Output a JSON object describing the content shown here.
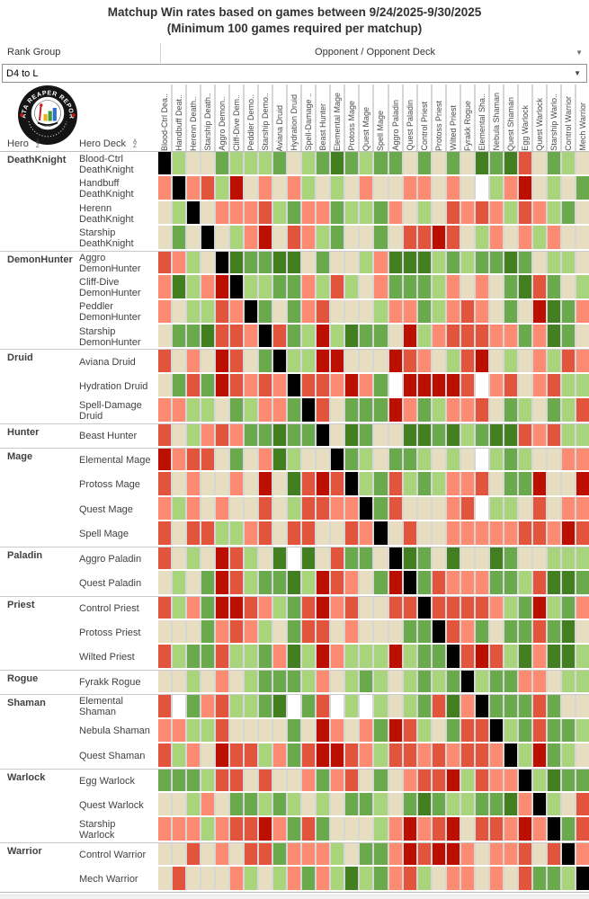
{
  "title": {
    "line1": "Matchup Win rates based on games between 9/24/2025-9/30/2025",
    "line2": "(Minimum 100 games required per matchup)"
  },
  "controls": {
    "rank_group_label": "Rank Group",
    "opponent_header": "Opponent / Opponent Deck",
    "rank_group_value": "D4 to L",
    "dropdown_arrow": "▼"
  },
  "table": {
    "hero_col_label": "Hero",
    "deck_col_label": "Hero Deck",
    "sort_icon_top": "A",
    "sort_icon_bottom": "Z",
    "logo": {
      "arc_text": "DATA REAPER REPORT"
    },
    "columns": [
      "Blood-Ctrl Dea..",
      "Handbuff Deat..",
      "Herenn Death..",
      "Starship Death..",
      "Aggro Demon..",
      "Cliff-Dive Dem..",
      "Peddler Demo..",
      "Starship Demo..",
      "Aviana Druid",
      "Hydration Druid",
      "Spell-Damage ..",
      "Beast Hunter",
      "Elemental Mage",
      "Protoss Mage",
      "Quest Mage",
      "Spell Mage",
      "Aggro Paladin",
      "Quest Paladin",
      "Control Priest",
      "Protoss Priest",
      "Wilted Priest",
      "Fyrakk Rogue",
      "Elemental Sha..",
      "Nebula Shaman",
      "Quest Shaman",
      "Egg Warlock",
      "Quest Warlock",
      "Starship Warlo..",
      "Control Warrior",
      "Mech Warrior"
    ],
    "groups": [
      {
        "hero": "DeathKnight",
        "decks": [
          "Blood-Ctrl DeathKnight",
          "Handbuff DeathKnight",
          "Herenn DeathKnight",
          "Starship DeathKnight"
        ]
      },
      {
        "hero": "DemonHunter",
        "decks": [
          "Aggro DemonHunter",
          "Cliff-Dive DemonHunter",
          "Peddler DemonHunter",
          "Starship DemonHunter"
        ]
      },
      {
        "hero": "Druid",
        "decks": [
          "Aviana Druid",
          "Hydration Druid",
          "Spell-Damage Druid"
        ]
      },
      {
        "hero": "Hunter",
        "decks": [
          "Beast Hunter"
        ]
      },
      {
        "hero": "Mage",
        "decks": [
          "Elemental Mage",
          "Protoss Mage",
          "Quest Mage",
          "Spell Mage"
        ]
      },
      {
        "hero": "Paladin",
        "decks": [
          "Aggro Paladin",
          "Quest Paladin"
        ]
      },
      {
        "hero": "Priest",
        "decks": [
          "Control Priest",
          "Protoss Priest",
          "Wilted Priest"
        ]
      },
      {
        "hero": "Rogue",
        "decks": [
          "Fyrakk Rogue"
        ]
      },
      {
        "hero": "Shaman",
        "decks": [
          "Elemental Shaman",
          "Nebula Shaman",
          "Quest Shaman"
        ]
      },
      {
        "hero": "Warlock",
        "decks": [
          "Egg Warlock",
          "Quest Warlock",
          "Starship Warlock"
        ]
      },
      {
        "hero": "Warrior",
        "decks": [
          "Control Warrior",
          "Mech Warrior"
        ]
      }
    ]
  },
  "chart_data": {
    "type": "heatmap",
    "title": "Matchup Win rates based on games between 9/24/2025-9/30/2025 (Minimum 100 games required per matchup)",
    "x_labels": [
      "Blood-Ctrl DeathKnight",
      "Handbuff DeathKnight",
      "Herenn DeathKnight",
      "Starship DeathKnight",
      "Aggro DemonHunter",
      "Cliff-Dive DemonHunter",
      "Peddler DemonHunter",
      "Starship DemonHunter",
      "Aviana Druid",
      "Hydration Druid",
      "Spell-Damage Druid",
      "Beast Hunter",
      "Elemental Mage",
      "Protoss Mage",
      "Quest Mage",
      "Spell Mage",
      "Aggro Paladin",
      "Quest Paladin",
      "Control Priest",
      "Protoss Priest",
      "Wilted Priest",
      "Fyrakk Rogue",
      "Elemental Shaman",
      "Nebula Shaman",
      "Quest Shaman",
      "Egg Warlock",
      "Quest Warlock",
      "Starship Warlock",
      "Control Warrior",
      "Mech Warrior"
    ],
    "y_labels": [
      "Blood-Ctrl DeathKnight",
      "Handbuff DeathKnight",
      "Herenn DeathKnight",
      "Starship DeathKnight",
      "Aggro DemonHunter",
      "Cliff-Dive DemonHunter",
      "Peddler DemonHunter",
      "Starship DemonHunter",
      "Aviana Druid",
      "Hydration Druid",
      "Spell-Damage Druid",
      "Beast Hunter",
      "Elemental Mage",
      "Protoss Mage",
      "Quest Mage",
      "Spell Mage",
      "Aggro Paladin",
      "Quest Paladin",
      "Control Priest",
      "Protoss Priest",
      "Wilted Priest",
      "Fyrakk Rogue",
      "Elemental Shaman",
      "Nebula Shaman",
      "Quest Shaman",
      "Egg Warlock",
      "Quest Warlock",
      "Starship Warlock",
      "Control Warrior",
      "Mech Warrior"
    ],
    "palette": {
      "K": "#000000",
      "W": "#ffffff",
      "A": "#417f21",
      "B": "#6aa94c",
      "C": "#a8d57b",
      "T": "#e7ddc1",
      "D": "#fc8b72",
      "E": "#e2543b",
      "F": "#bd0f00"
    },
    "palette_meaning": {
      "A": "heavily favored (win)",
      "B": "favored",
      "C": "slightly favored",
      "T": "close to even",
      "D": "slightly unfavored",
      "E": "unfavored",
      "F": "heavily unfavored (loss)",
      "K": "mirror matchup",
      "W": "insufficient data"
    },
    "matrix": [
      "K C T T B C C C B T C B A B C B B T B T B T A B A E T B C T",
      "D K D E C F T D T D C T C T D T T D D T D T W C D F T C T B",
      "T C K T D D D E C B D D B C C B D T C T E D E D C E D C B T",
      "T B T K T C D F T E D C B T T B T E E F E T C D T D C D T T",
      "E D C T K A B B A A T B T T C D A A A C B C B B A B T C C T",
      "D A C D F K C C B B D C E C T D B B B C D T D T B A E B T C",
      "D T C C E D K B T B D E T T T C D D B C D E D T B T F A B D",
      "T B B A E E D K E B C F C A B B T F C D E E E D D B D A B T",
      "E T D T F E T B K C C F F T T T F E D T C E F T C T D C E D",
      "T B E B F E D E D K E E D F D B W F F F F E W D E T D E C C",
      "D D C C T B C D D B K E T B B B F D B C D D E T B C T B C E",
      "E T C D E D B B A B B K T A B T T A A B A C B A A E D E C C",
      "F D E E T B T D A C T T K B C T B B C T C T W C B C T T D D",
      "E T D T T D T F T A E F E K C B E C B C D D E T B B F T T F",
      "D C D T D T T E T C E E D D K B E T T T D E W C C T E T D D",
      "E T E E C C D E T E E T T E D K T E T T D D D D D E E D F E",
      "E T C T F E C T A W A T E B B T K A B T A T T A B T T C C C",
      "T C T B F E C B B A C F E D T B F K B E D D D B B C E A A B",
      "E C D B F F E D C B E F D E T T E E K E E E E D C B F C B D",
      "T T T B D E D C T B E E T D T T T B B K E D B T B B E B A T",
      "E C B B E C C B D A C F D C C C F C B B K E F E C A D A A C",
      "T T C T D T C B B B C D T C B C T C B C B K C B B D D T C C",
      "E W B D E C C B A W B E W C W C T C B E A D K B B B E B T T",
      "D D C C E T T T T B T F D T D B F E C T B E E K C B E B B C",
      "E C D T F E E C D B E F F E D C E E D E D E E D K C F B C T",
      "B B B C E E T E T T D B D E T B T D E E F C E D D K C A B B",
      "T T C D T B B C B C T C T B B C T B A B C C B B A D K C T E",
      "D D D C D E E F D B E B T T T C D F D E F T E E D F D K B E",
      "T T E T D T E E B D D D C T B B D F E F F D T D D E T E K D",
      "T E T T T D C T C D B D C A C B D E C T D D T D T E B B C K"
    ]
  }
}
